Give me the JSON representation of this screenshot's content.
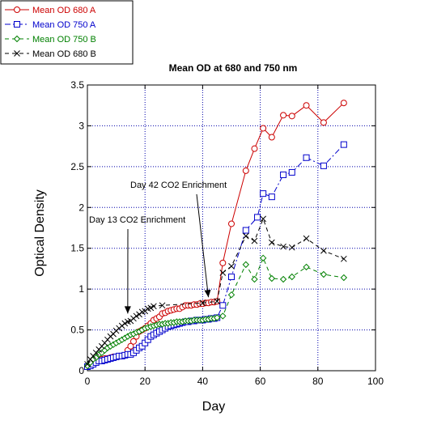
{
  "chart_data": {
    "type": "line",
    "title": "Mean OD at 680 and 750 nm",
    "xlabel": "Day",
    "ylabel": "Optical Density",
    "xlim": [
      0,
      100
    ],
    "ylim": [
      0,
      3.5
    ],
    "xticks": [
      "0",
      "20",
      "40",
      "60",
      "80",
      "100"
    ],
    "yticks": [
      "0",
      "0.5",
      "1",
      "1.5",
      "2",
      "2.5",
      "3",
      "3.5"
    ],
    "grid": true,
    "legend_position": "top-left, outside plot",
    "series": [
      {
        "name": "Mean OD 680 A",
        "color": "#cc0000",
        "marker": "circle",
        "line": "solid",
        "points": [
          [
            0,
            0.05
          ],
          [
            1,
            0.08
          ],
          [
            2,
            0.1
          ],
          [
            3,
            0.12
          ],
          [
            4,
            0.13
          ],
          [
            5,
            0.14
          ],
          [
            6,
            0.15
          ],
          [
            7,
            0.15
          ],
          [
            8,
            0.16
          ],
          [
            9,
            0.17
          ],
          [
            10,
            0.17
          ],
          [
            11,
            0.18
          ],
          [
            12,
            0.18
          ],
          [
            13,
            0.19
          ],
          [
            14,
            0.25
          ],
          [
            15,
            0.3
          ],
          [
            16,
            0.36
          ],
          [
            17,
            0.42
          ],
          [
            18,
            0.48
          ],
          [
            19,
            0.5
          ],
          [
            20,
            0.52
          ],
          [
            21,
            0.55
          ],
          [
            22,
            0.58
          ],
          [
            23,
            0.62
          ],
          [
            24,
            0.64
          ],
          [
            25,
            0.66
          ],
          [
            26,
            0.7
          ],
          [
            27,
            0.71
          ],
          [
            28,
            0.73
          ],
          [
            29,
            0.74
          ],
          [
            30,
            0.75
          ],
          [
            31,
            0.76
          ],
          [
            32,
            0.76
          ],
          [
            33,
            0.78
          ],
          [
            34,
            0.8
          ],
          [
            35,
            0.8
          ],
          [
            36,
            0.8
          ],
          [
            37,
            0.81
          ],
          [
            38,
            0.81
          ],
          [
            39,
            0.82
          ],
          [
            40,
            0.82
          ],
          [
            41,
            0.83
          ],
          [
            42,
            0.83
          ],
          [
            43,
            0.84
          ],
          [
            44,
            0.84
          ],
          [
            45,
            0.85
          ],
          [
            47,
            1.32
          ],
          [
            50,
            1.8
          ],
          [
            55,
            2.45
          ],
          [
            58,
            2.72
          ],
          [
            61,
            2.97
          ],
          [
            64,
            2.86
          ],
          [
            68,
            3.13
          ],
          [
            71,
            3.12
          ],
          [
            76,
            3.25
          ],
          [
            82,
            3.04
          ],
          [
            89,
            3.28
          ]
        ]
      },
      {
        "name": "Mean OD 750 A",
        "color": "#0000cc",
        "marker": "square",
        "line": "dash-dot",
        "points": [
          [
            0,
            0.05
          ],
          [
            1,
            0.06
          ],
          [
            2,
            0.08
          ],
          [
            3,
            0.1
          ],
          [
            4,
            0.12
          ],
          [
            5,
            0.12
          ],
          [
            6,
            0.13
          ],
          [
            7,
            0.14
          ],
          [
            8,
            0.15
          ],
          [
            9,
            0.16
          ],
          [
            10,
            0.17
          ],
          [
            11,
            0.18
          ],
          [
            12,
            0.18
          ],
          [
            13,
            0.19
          ],
          [
            14,
            0.2
          ],
          [
            15,
            0.2
          ],
          [
            16,
            0.22
          ],
          [
            17,
            0.25
          ],
          [
            18,
            0.28
          ],
          [
            19,
            0.3
          ],
          [
            20,
            0.34
          ],
          [
            21,
            0.38
          ],
          [
            22,
            0.42
          ],
          [
            23,
            0.44
          ],
          [
            24,
            0.46
          ],
          [
            25,
            0.48
          ],
          [
            26,
            0.5
          ],
          [
            27,
            0.52
          ],
          [
            28,
            0.54
          ],
          [
            29,
            0.55
          ],
          [
            30,
            0.56
          ],
          [
            31,
            0.57
          ],
          [
            32,
            0.58
          ],
          [
            33,
            0.59
          ],
          [
            34,
            0.6
          ],
          [
            35,
            0.6
          ],
          [
            36,
            0.61
          ],
          [
            37,
            0.61
          ],
          [
            38,
            0.62
          ],
          [
            39,
            0.62
          ],
          [
            40,
            0.62
          ],
          [
            41,
            0.63
          ],
          [
            42,
            0.63
          ],
          [
            43,
            0.64
          ],
          [
            44,
            0.64
          ],
          [
            45,
            0.65
          ],
          [
            47,
            0.8
          ],
          [
            50,
            1.15
          ],
          [
            55,
            1.72
          ],
          [
            59,
            1.88
          ],
          [
            61,
            2.17
          ],
          [
            64,
            2.13
          ],
          [
            68,
            2.4
          ],
          [
            71,
            2.43
          ],
          [
            76,
            2.61
          ],
          [
            82,
            2.51
          ],
          [
            89,
            2.77
          ]
        ]
      },
      {
        "name": "Mean OD 750 B",
        "color": "#008000",
        "marker": "diamond",
        "line": "dashed",
        "points": [
          [
            0,
            0.06
          ],
          [
            1,
            0.1
          ],
          [
            2,
            0.14
          ],
          [
            3,
            0.16
          ],
          [
            4,
            0.2
          ],
          [
            5,
            0.22
          ],
          [
            6,
            0.25
          ],
          [
            7,
            0.28
          ],
          [
            8,
            0.3
          ],
          [
            9,
            0.32
          ],
          [
            10,
            0.34
          ],
          [
            11,
            0.36
          ],
          [
            12,
            0.38
          ],
          [
            13,
            0.4
          ],
          [
            14,
            0.42
          ],
          [
            15,
            0.44
          ],
          [
            16,
            0.45
          ],
          [
            17,
            0.47
          ],
          [
            18,
            0.48
          ],
          [
            19,
            0.5
          ],
          [
            20,
            0.52
          ],
          [
            21,
            0.53
          ],
          [
            22,
            0.54
          ],
          [
            23,
            0.55
          ],
          [
            24,
            0.56
          ],
          [
            25,
            0.57
          ],
          [
            26,
            0.57
          ],
          [
            27,
            0.58
          ],
          [
            28,
            0.58
          ],
          [
            29,
            0.59
          ],
          [
            30,
            0.59
          ],
          [
            31,
            0.6
          ],
          [
            32,
            0.6
          ],
          [
            33,
            0.6
          ],
          [
            34,
            0.61
          ],
          [
            35,
            0.61
          ],
          [
            36,
            0.61
          ],
          [
            37,
            0.62
          ],
          [
            38,
            0.62
          ],
          [
            39,
            0.62
          ],
          [
            40,
            0.62
          ],
          [
            41,
            0.63
          ],
          [
            42,
            0.63
          ],
          [
            43,
            0.64
          ],
          [
            44,
            0.64
          ],
          [
            45,
            0.65
          ],
          [
            47,
            0.67
          ],
          [
            50,
            0.93
          ],
          [
            55,
            1.3
          ],
          [
            58,
            1.12
          ],
          [
            61,
            1.38
          ],
          [
            64,
            1.13
          ],
          [
            68,
            1.12
          ],
          [
            71,
            1.15
          ],
          [
            76,
            1.27
          ],
          [
            82,
            1.18
          ],
          [
            89,
            1.14
          ]
        ]
      },
      {
        "name": "Mean OD 680 B",
        "color": "#000000",
        "marker": "x",
        "line": "dashed",
        "points": [
          [
            0,
            0.08
          ],
          [
            1,
            0.14
          ],
          [
            2,
            0.18
          ],
          [
            3,
            0.22
          ],
          [
            4,
            0.26
          ],
          [
            5,
            0.3
          ],
          [
            6,
            0.34
          ],
          [
            7,
            0.38
          ],
          [
            8,
            0.42
          ],
          [
            9,
            0.45
          ],
          [
            10,
            0.49
          ],
          [
            11,
            0.52
          ],
          [
            12,
            0.55
          ],
          [
            13,
            0.58
          ],
          [
            14,
            0.6
          ],
          [
            15,
            0.61
          ],
          [
            16,
            0.64
          ],
          [
            17,
            0.67
          ],
          [
            18,
            0.69
          ],
          [
            19,
            0.72
          ],
          [
            20,
            0.73
          ],
          [
            21,
            0.76
          ],
          [
            22,
            0.77
          ],
          [
            23,
            0.79
          ],
          [
            26,
            0.8
          ],
          [
            40,
            0.83
          ],
          [
            45,
            0.85
          ],
          [
            47,
            1.2
          ],
          [
            50,
            1.28
          ],
          [
            55,
            1.65
          ],
          [
            58,
            1.59
          ],
          [
            61,
            1.86
          ],
          [
            64,
            1.57
          ],
          [
            68,
            1.52
          ],
          [
            71,
            1.51
          ],
          [
            76,
            1.62
          ],
          [
            82,
            1.47
          ],
          [
            89,
            1.37
          ]
        ]
      }
    ],
    "annotations": [
      {
        "text": "Day 42 CO2 Enrichment",
        "arrow_x": 42,
        "arrow_y": 0.9
      },
      {
        "text": "Day 13 CO2 Enrichment",
        "arrow_x": 14,
        "arrow_y": 0.7
      }
    ]
  }
}
